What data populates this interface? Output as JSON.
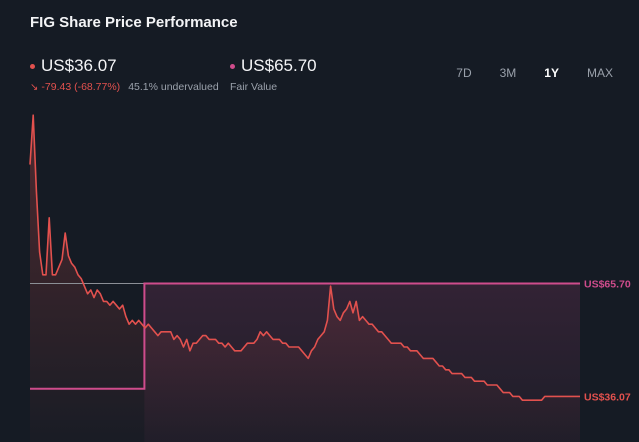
{
  "header": {
    "title": "FIG Share Price Performance"
  },
  "price": {
    "value": "US$36.07",
    "change": "-79.43 (-68.77%)",
    "undervalued": "45.1% undervalued",
    "color": "#e2514e"
  },
  "fair_value": {
    "value": "US$65.70",
    "label": "Fair Value",
    "color": "#cf4c8c"
  },
  "tabs": [
    {
      "label": "7D",
      "active": false
    },
    {
      "label": "3M",
      "active": false
    },
    {
      "label": "1Y",
      "active": true
    },
    {
      "label": "MAX",
      "active": false
    }
  ],
  "chart_data": {
    "type": "line",
    "series": [
      {
        "values": [
          97,
          110,
          90,
          74,
          68,
          68,
          83,
          68,
          68,
          70,
          72,
          79,
          73,
          71,
          70,
          68,
          67,
          65,
          63,
          64,
          62,
          64,
          63,
          61,
          61,
          60,
          61,
          60,
          59,
          60,
          57,
          55,
          56,
          55,
          56,
          55,
          54,
          55,
          54,
          53,
          52,
          53,
          53,
          53,
          53,
          51,
          52,
          51,
          49,
          51,
          48,
          50,
          50,
          51,
          52,
          52,
          51,
          51,
          51,
          50,
          50,
          49,
          50,
          49,
          48,
          48,
          48,
          49,
          50,
          50,
          50,
          51,
          53,
          52,
          53,
          52,
          51,
          51,
          51,
          50,
          50,
          49,
          49,
          49,
          49,
          48,
          47,
          46,
          48,
          49,
          51,
          52,
          53,
          56,
          65,
          59,
          57,
          56,
          58,
          59,
          61,
          58,
          61,
          56,
          57,
          56,
          55,
          55,
          54,
          53,
          53,
          52,
          51,
          50,
          50,
          50,
          50,
          49,
          49,
          48,
          48,
          48,
          47,
          46,
          46,
          46,
          46,
          45,
          44,
          44,
          43,
          43,
          42,
          42,
          42,
          42,
          41,
          41,
          41,
          40,
          40,
          40,
          40,
          39,
          39,
          39,
          39,
          38,
          37,
          37,
          37,
          36,
          36,
          36,
          35,
          35,
          35,
          35,
          35,
          35,
          35,
          36,
          36,
          36,
          36,
          36,
          36,
          36,
          36,
          36,
          36,
          36,
          36
        ]
      }
    ],
    "price_label": "US$36.07",
    "fair_value_label": "US$65.70",
    "fair_value_step": {
      "before": 38,
      "after": 65.7,
      "step_fraction": 0.208
    },
    "ylim": [
      24,
      114
    ],
    "grid": false
  }
}
